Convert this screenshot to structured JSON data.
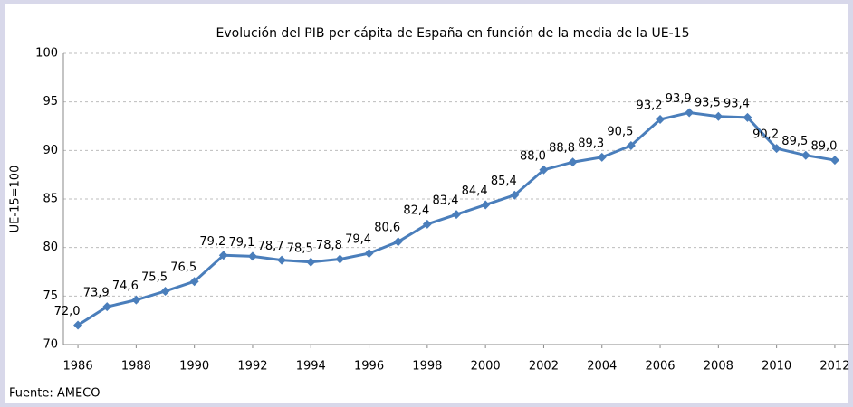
{
  "chart_data": {
    "type": "line",
    "title": "Evolución del PIB per cápita de España en función de la media de la UE-15",
    "y_label": "UE-15=100",
    "source": "Fuente: AMECO",
    "x": [
      1986,
      1987,
      1988,
      1989,
      1990,
      1991,
      1992,
      1993,
      1994,
      1995,
      1996,
      1997,
      1998,
      1999,
      2000,
      2001,
      2002,
      2003,
      2004,
      2005,
      2006,
      2007,
      2008,
      2009,
      2010,
      2011,
      2012
    ],
    "values": [
      72.0,
      73.9,
      74.6,
      75.5,
      76.5,
      79.2,
      79.1,
      78.7,
      78.5,
      78.8,
      79.4,
      80.6,
      82.4,
      83.4,
      84.4,
      85.4,
      88.0,
      88.8,
      89.3,
      90.5,
      93.2,
      93.9,
      93.5,
      93.4,
      90.2,
      89.5,
      89.0
    ],
    "value_labels": [
      "72,0",
      "73,9",
      "74,6",
      "75,5",
      "76,5",
      "79,2",
      "79,1",
      "78,7",
      "78,5",
      "78,8",
      "79,4",
      "80,6",
      "82,4",
      "83,4",
      "84,4",
      "85,4",
      "88,0",
      "88,8",
      "89,3",
      "90,5",
      "93,2",
      "93,9",
      "93,5",
      "93,4",
      "90,2",
      "89,5",
      "89,0"
    ],
    "color": "#4a7ebb",
    "xlim": [
      1985.5,
      2012.5
    ],
    "xticks": [
      1986,
      1988,
      1990,
      1992,
      1994,
      1996,
      1998,
      2000,
      2002,
      2004,
      2006,
      2008,
      2010,
      2012
    ],
    "ylim": [
      70,
      100
    ],
    "yticks": [
      70,
      75,
      80,
      85,
      90,
      95,
      100
    ],
    "grid": true
  }
}
